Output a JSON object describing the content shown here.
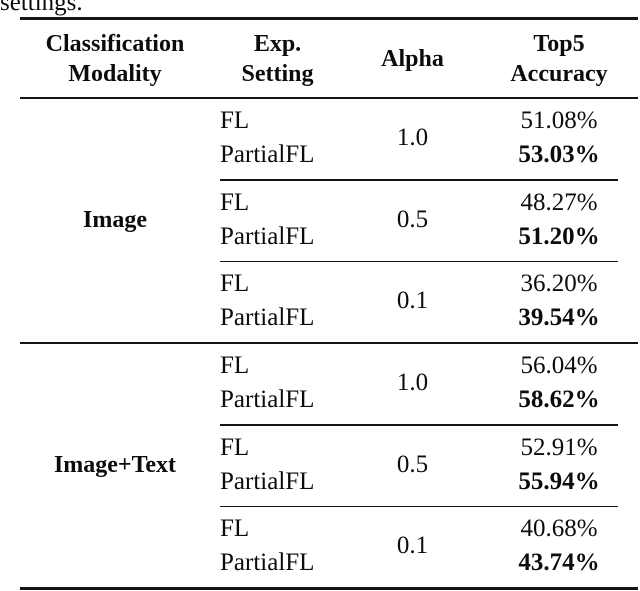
{
  "caption_fragment": "settings.",
  "colors": {
    "text": "#0c0c0c",
    "rule": "#151515",
    "background": "#ffffff"
  },
  "table": {
    "columns": [
      {
        "label_line1": "Classification",
        "label_line2": "Modality"
      },
      {
        "label_line1": "Exp.",
        "label_line2": "Setting"
      },
      {
        "label_line1": "Alpha"
      },
      {
        "label_line1": "Top5",
        "label_line2": "Accuracy"
      }
    ],
    "blocks": [
      {
        "modality": "Image",
        "groups": [
          {
            "alpha": "1.0",
            "rows": [
              {
                "setting": "FL",
                "accuracy": "51.08%",
                "bold": false
              },
              {
                "setting": "PartialFL",
                "accuracy": "53.03%",
                "bold": true
              }
            ]
          },
          {
            "alpha": "0.5",
            "rows": [
              {
                "setting": "FL",
                "accuracy": "48.27%",
                "bold": false
              },
              {
                "setting": "PartialFL",
                "accuracy": "51.20%",
                "bold": true
              }
            ]
          },
          {
            "alpha": "0.1",
            "rows": [
              {
                "setting": "FL",
                "accuracy": "36.20%",
                "bold": false
              },
              {
                "setting": "PartialFL",
                "accuracy": "39.54%",
                "bold": true
              }
            ]
          }
        ]
      },
      {
        "modality": "Image+Text",
        "groups": [
          {
            "alpha": "1.0",
            "rows": [
              {
                "setting": "FL",
                "accuracy": "56.04%",
                "bold": false
              },
              {
                "setting": "PartialFL",
                "accuracy": "58.62%",
                "bold": true
              }
            ]
          },
          {
            "alpha": "0.5",
            "rows": [
              {
                "setting": "FL",
                "accuracy": "52.91%",
                "bold": false
              },
              {
                "setting": "PartialFL",
                "accuracy": "55.94%",
                "bold": true
              }
            ]
          },
          {
            "alpha": "0.1",
            "rows": [
              {
                "setting": "FL",
                "accuracy": "40.68%",
                "bold": false
              },
              {
                "setting": "PartialFL",
                "accuracy": "43.74%",
                "bold": true
              }
            ]
          }
        ]
      }
    ]
  }
}
